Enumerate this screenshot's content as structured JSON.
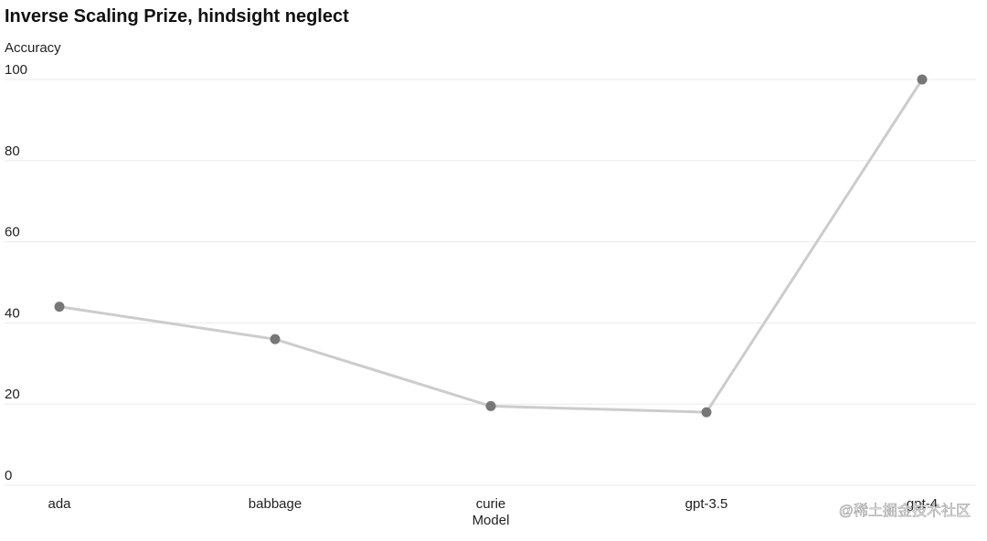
{
  "chart_data": {
    "type": "line",
    "title": "Inverse Scaling Prize, hindsight neglect",
    "y_label": "Accuracy",
    "x_label": "Model",
    "categories": [
      "ada",
      "babbage",
      "curie",
      "gpt-3.5",
      "gpt-4"
    ],
    "series": [
      {
        "name": "Accuracy",
        "color": "#777777",
        "line_color": "#cccccc",
        "values": [
          44,
          36,
          19.5,
          18,
          100
        ]
      }
    ],
    "ylim": [
      0,
      100
    ],
    "yticks": [
      0,
      20,
      40,
      60,
      80,
      100
    ],
    "grid": true
  },
  "watermark": "@稀土掘金技术社区"
}
